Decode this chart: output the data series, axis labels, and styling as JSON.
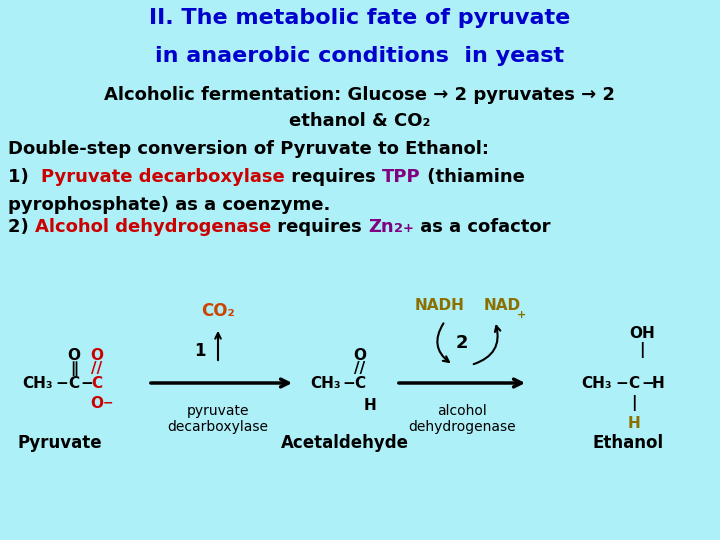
{
  "bg_color": "#aef0f8",
  "diagram_bg": "#d8d8d8",
  "title_color": "#0000cc",
  "red_color": "#cc0000",
  "purple_color": "#800080",
  "orange_color": "#cc4400",
  "gold_color": "#8b7000",
  "black": "#000000",
  "title1": "II. The metabolic fate of pyruvate",
  "title2": "in anaerobic conditions  in yeast",
  "sub1": "Alcoholic fermentation: Glucose → 2 pyruvates → 2",
  "sub2": "ethanol & CO₂",
  "line3": "Double-step conversion of Pyruvate to Ethanol:",
  "line5": "pyrophosphate) as a coenzyme.",
  "line6_suffix": " as a cofactor"
}
